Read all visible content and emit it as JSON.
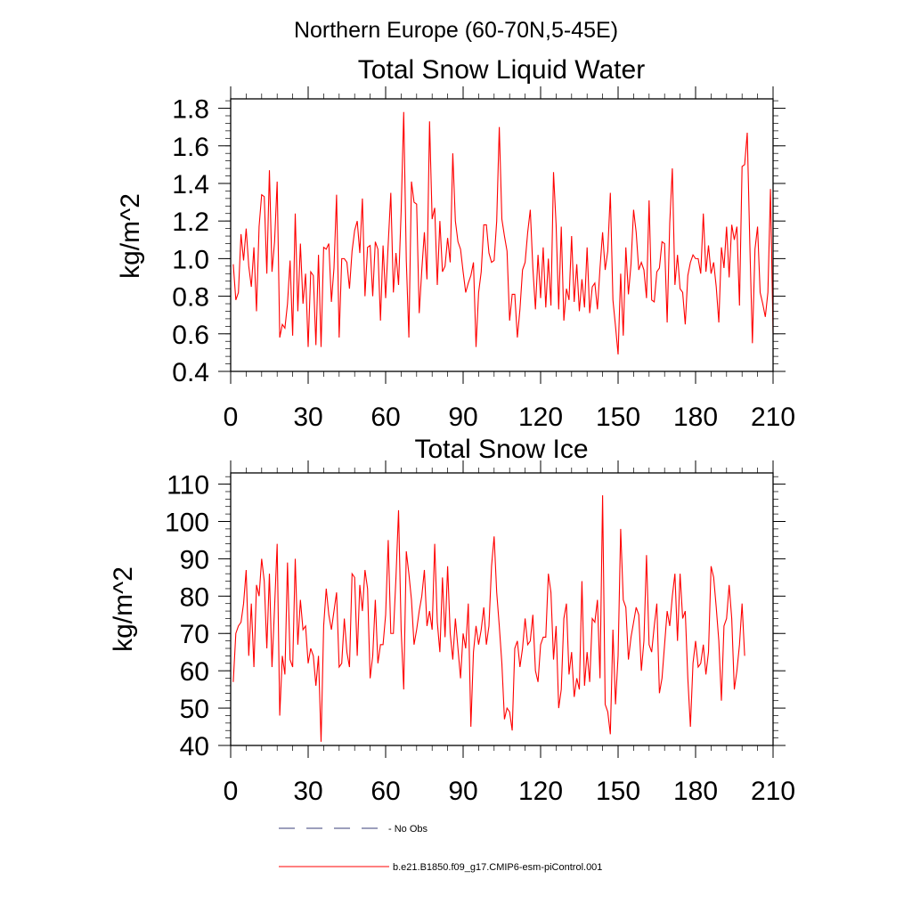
{
  "page": {
    "region_title": "Northern Europe (60-70N,5-45E)"
  },
  "legend": {
    "placement": "bottom-left",
    "entries": [
      {
        "label": "No Obs",
        "style": "dashed",
        "color": "#3a3f7a"
      },
      {
        "label": "b.e21.B1850.f09_g17.CMIP6-esm-piControl.001",
        "style": "solid",
        "color": "#ff0000"
      }
    ]
  },
  "chart_data": [
    {
      "type": "line",
      "title": "Total Snow Liquid Water",
      "xlabel": "",
      "ylabel": "kg/m^2",
      "xlim": [
        0,
        210
      ],
      "ylim": [
        0.4,
        1.85
      ],
      "xticks": [
        0,
        30,
        60,
        90,
        120,
        150,
        180,
        210
      ],
      "xtick_labels": [
        "0",
        "30",
        "60",
        "90",
        "120",
        "150",
        "180",
        "210"
      ],
      "yticks": [
        0.4,
        0.6,
        0.8,
        1.0,
        1.2,
        1.4,
        1.6,
        1.8
      ],
      "ytick_labels": [
        "0.4",
        "0.6",
        "0.8",
        "1.0",
        "1.2",
        "1.4",
        "1.6",
        "1.8"
      ],
      "grid": false,
      "series": [
        {
          "name": "b.e21.B1850.f09_g17.CMIP6-esm-piControl.001",
          "color": "#ff0000",
          "x_start": 1,
          "values": [
            0.97,
            0.78,
            0.82,
            1.13,
            0.99,
            1.16,
            0.96,
            0.85,
            1.06,
            0.72,
            1.17,
            1.34,
            1.33,
            0.92,
            1.47,
            0.93,
            1.09,
            1.41,
            0.58,
            0.65,
            0.63,
            0.76,
            0.99,
            0.59,
            1.24,
            0.72,
            1.08,
            0.76,
            0.92,
            0.53,
            0.93,
            0.91,
            0.54,
            1.02,
            0.53,
            1.06,
            1.05,
            1.08,
            0.77,
            0.95,
            1.34,
            0.58,
            1.0,
            1.0,
            0.98,
            0.84,
            1.04,
            1.15,
            1.2,
            1.03,
            1.32,
            0.8,
            1.06,
            1.07,
            0.8,
            1.09,
            1.05,
            0.67,
            1.07,
            0.79,
            1.08,
            1.35,
            0.82,
            1.03,
            0.86,
            1.25,
            1.78,
            0.99,
            0.58,
            1.41,
            1.3,
            1.29,
            0.71,
            0.94,
            1.14,
            0.89,
            1.73,
            1.21,
            1.27,
            0.86,
            1.2,
            0.93,
            0.96,
            1.11,
            0.98,
            1.56,
            1.2,
            1.09,
            1.05,
            0.93,
            0.82,
            0.87,
            0.91,
            0.98,
            0.53,
            0.82,
            0.93,
            1.18,
            1.18,
            1.03,
            0.98,
            0.99,
            1.2,
            1.7,
            1.21,
            1.12,
            1.04,
            0.67,
            0.81,
            0.81,
            0.58,
            0.73,
            0.94,
            0.98,
            1.14,
            1.26,
            0.95,
            0.73,
            1.02,
            0.79,
            1.06,
            0.74,
            1.0,
            0.75,
            1.46,
            1.18,
            0.73,
            1.17,
            0.67,
            0.84,
            0.78,
            1.12,
            0.77,
            0.97,
            0.72,
            0.89,
            0.74,
            1.06,
            0.71,
            0.85,
            0.87,
            0.73,
            0.95,
            1.14,
            0.94,
            1.04,
            1.35,
            0.78,
            0.64,
            0.49,
            0.92,
            0.59,
            1.06,
            0.81,
            0.97,
            1.26,
            1.14,
            0.94,
            0.98,
            0.94,
            0.79,
            1.31,
            0.78,
            0.77,
            0.93,
            0.95,
            1.09,
            1.08,
            0.66,
            1.19,
            1.48,
            0.86,
            1.02,
            0.84,
            0.82,
            0.65,
            0.91,
            0.98,
            1.02,
            1.0,
            1.0,
            0.92,
            1.24,
            0.93,
            1.07,
            0.92,
            0.98,
            0.85,
            0.66,
            1.06,
            0.95,
            1.17,
            0.9,
            1.18,
            1.1,
            1.17,
            0.75,
            1.49,
            1.5,
            1.67,
            1.08,
            0.55,
            1.05,
            1.17,
            0.82,
            0.76,
            0.69,
            0.82,
            1.37,
            0.6
          ]
        }
      ]
    },
    {
      "type": "line",
      "title": "Total Snow Ice",
      "xlabel": "",
      "ylabel": "kg/m^2",
      "xlim": [
        0,
        210
      ],
      "ylim": [
        40,
        113
      ],
      "xticks": [
        0,
        30,
        60,
        90,
        120,
        150,
        180,
        210
      ],
      "xtick_labels": [
        "0",
        "30",
        "60",
        "90",
        "120",
        "150",
        "180",
        "210"
      ],
      "yticks": [
        40,
        50,
        60,
        70,
        80,
        90,
        100,
        110
      ],
      "ytick_labels": [
        "40",
        "50",
        "60",
        "70",
        "80",
        "90",
        "100",
        "110"
      ],
      "grid": false,
      "series": [
        {
          "name": "b.e21.B1850.f09_g17.CMIP6-esm-piControl.001",
          "color": "#ff0000",
          "x_start": 1,
          "values": [
            57,
            70,
            72,
            73,
            78,
            87,
            64,
            78,
            61,
            83,
            80,
            90,
            84,
            66,
            86,
            61,
            77,
            94,
            48,
            64,
            59,
            89,
            63,
            61,
            90,
            67,
            79,
            71,
            72,
            62,
            66,
            64,
            56,
            64,
            41,
            72,
            82,
            75,
            71,
            76,
            81,
            61,
            62,
            74,
            65,
            61,
            86,
            85,
            64,
            83,
            76,
            87,
            82,
            58,
            64,
            79,
            62,
            67,
            67,
            75,
            95,
            70,
            70,
            85,
            103,
            71,
            55,
            92,
            86,
            79,
            67,
            71,
            76,
            80,
            87,
            72,
            76,
            71,
            94,
            73,
            65,
            85,
            69,
            88,
            70,
            63,
            74,
            66,
            58,
            70,
            66,
            78,
            45,
            65,
            72,
            67,
            71,
            77,
            67,
            72,
            88,
            96,
            81,
            72,
            62,
            47,
            50,
            49,
            44,
            66,
            68,
            61,
            66,
            74,
            67,
            68,
            75,
            60,
            57,
            67,
            69,
            69,
            86,
            81,
            63,
            72,
            50,
            55,
            74,
            78,
            59,
            65,
            53,
            58,
            55,
            84,
            56,
            65,
            57,
            74,
            73,
            79,
            58,
            107,
            51,
            49,
            43,
            71,
            51,
            64,
            98,
            79,
            77,
            63,
            69,
            73,
            77,
            75,
            60,
            68,
            91,
            67,
            65,
            72,
            78,
            54,
            58,
            67,
            76,
            72,
            80,
            86,
            68,
            86,
            74,
            76,
            58,
            45,
            62,
            68,
            61,
            62,
            67,
            59,
            65,
            88,
            85,
            77,
            68,
            52,
            72,
            74,
            83,
            74,
            55,
            60,
            67,
            78,
            64
          ]
        }
      ]
    }
  ]
}
